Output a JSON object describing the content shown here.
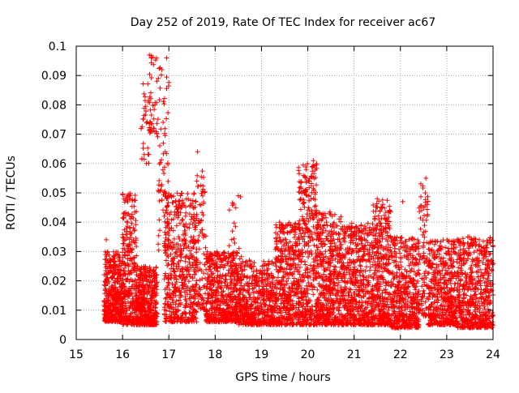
{
  "chart_data": {
    "type": "scatter",
    "title": "Day 252 of 2019, Rate Of TEC Index for receiver ac67",
    "xlabel": "GPS time / hours",
    "ylabel": "ROTI / TECUs",
    "xlim": [
      15,
      24
    ],
    "ylim": [
      0,
      0.1
    ],
    "xticks": [
      "15",
      "16",
      "17",
      "18",
      "19",
      "20",
      "21",
      "22",
      "23",
      "24"
    ],
    "yticks": [
      "0",
      "0.01",
      "0.02",
      "0.03",
      "0.04",
      "0.05",
      "0.06",
      "0.07",
      "0.08",
      "0.09",
      "0.1"
    ],
    "grid": true,
    "marker": "+",
    "color": "#ff0000",
    "series": [
      {
        "name": "ROTI",
        "clusters": [
          {
            "x": [
              15.6,
              16.0
            ],
            "y": [
              0.006,
              0.03
            ],
            "n": 420
          },
          {
            "x": [
              16.0,
              16.3
            ],
            "y": [
              0.005,
              0.05
            ],
            "n": 300
          },
          {
            "x": [
              16.3,
              16.75
            ],
            "y": [
              0.005,
              0.025
            ],
            "n": 420
          },
          {
            "x": [
              16.4,
              16.6
            ],
            "y": [
              0.06,
              0.089
            ],
            "n": 30
          },
          {
            "x": [
              16.55,
              16.75
            ],
            "y": [
              0.07,
              0.097
            ],
            "n": 40
          },
          {
            "x": [
              16.75,
              17.0
            ],
            "y": [
              0.03,
              0.097
            ],
            "n": 70
          },
          {
            "x": [
              16.9,
              17.6
            ],
            "y": [
              0.006,
              0.05
            ],
            "n": 520
          },
          {
            "x": [
              17.6,
              17.8
            ],
            "y": [
              0.01,
              0.058
            ],
            "n": 90
          },
          {
            "x": [
              17.8,
              18.5
            ],
            "y": [
              0.006,
              0.03
            ],
            "n": 520
          },
          {
            "x": [
              18.3,
              18.6
            ],
            "y": [
              0.02,
              0.049
            ],
            "n": 40
          },
          {
            "x": [
              18.5,
              19.3
            ],
            "y": [
              0.005,
              0.027
            ],
            "n": 520
          },
          {
            "x": [
              19.3,
              19.8
            ],
            "y": [
              0.005,
              0.04
            ],
            "n": 420
          },
          {
            "x": [
              19.8,
              20.2
            ],
            "y": [
              0.005,
              0.06
            ],
            "n": 380
          },
          {
            "x": [
              20.2,
              20.8
            ],
            "y": [
              0.005,
              0.044
            ],
            "n": 520
          },
          {
            "x": [
              20.8,
              21.4
            ],
            "y": [
              0.005,
              0.04
            ],
            "n": 480
          },
          {
            "x": [
              21.4,
              21.8
            ],
            "y": [
              0.005,
              0.048
            ],
            "n": 380
          },
          {
            "x": [
              21.8,
              22.4
            ],
            "y": [
              0.004,
              0.035
            ],
            "n": 460
          },
          {
            "x": [
              22.4,
              22.6
            ],
            "y": [
              0.008,
              0.055
            ],
            "n": 90
          },
          {
            "x": [
              22.6,
              23.2
            ],
            "y": [
              0.005,
              0.034
            ],
            "n": 460
          },
          {
            "x": [
              23.2,
              24.0
            ],
            "y": [
              0.004,
              0.035
            ],
            "n": 600
          }
        ],
        "highlights": [
          {
            "x": 16.58,
            "y": 0.097
          },
          {
            "x": 16.62,
            "y": 0.096
          },
          {
            "x": 16.95,
            "y": 0.096
          },
          {
            "x": 16.85,
            "y": 0.092
          },
          {
            "x": 16.7,
            "y": 0.08
          },
          {
            "x": 16.92,
            "y": 0.064
          },
          {
            "x": 17.62,
            "y": 0.064
          },
          {
            "x": 20.12,
            "y": 0.061
          },
          {
            "x": 20.1,
            "y": 0.059
          },
          {
            "x": 22.55,
            "y": 0.055
          },
          {
            "x": 22.5,
            "y": 0.045
          },
          {
            "x": 18.5,
            "y": 0.049
          },
          {
            "x": 21.5,
            "y": 0.048
          },
          {
            "x": 22.05,
            "y": 0.047
          },
          {
            "x": 23.7,
            "y": 0.034
          },
          {
            "x": 15.65,
            "y": 0.034
          },
          {
            "x": 21.9,
            "y": 0.004
          }
        ]
      }
    ]
  }
}
